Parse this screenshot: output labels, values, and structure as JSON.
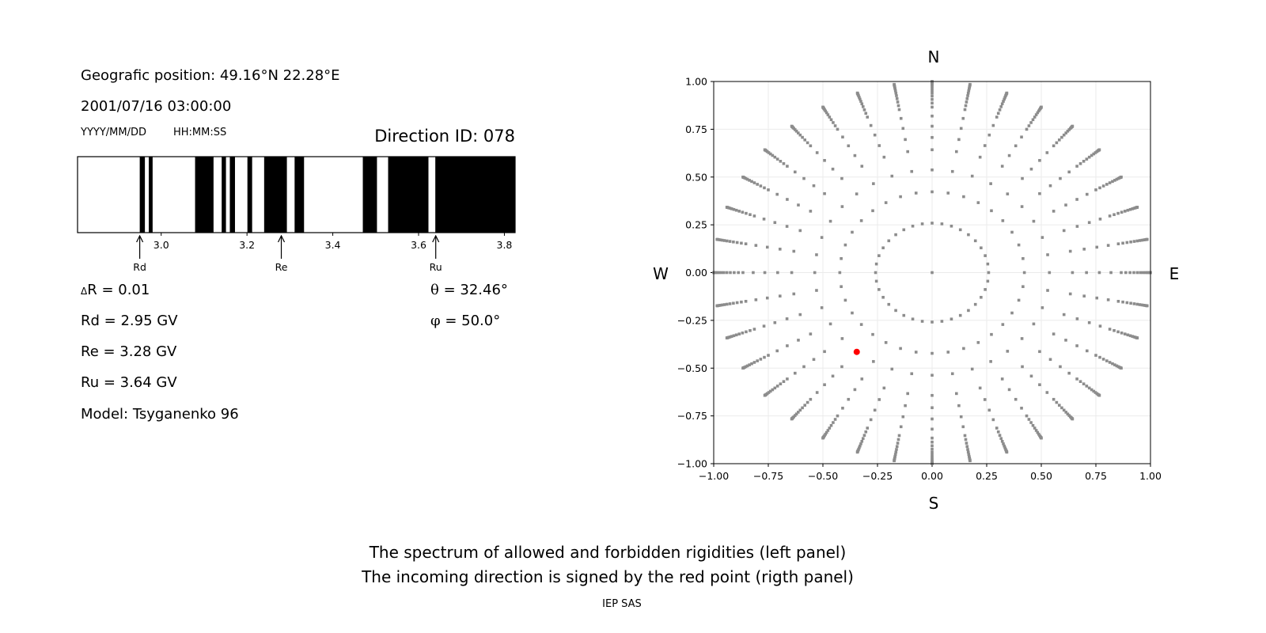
{
  "left_panel": {
    "position": "Geografic position: 49.16°N 22.28°E",
    "datetime": "2001/07/16 03:00:00",
    "date_format": "YYYY/MM/DD",
    "time_format": "HH:MM:SS",
    "direction_id": "Direction ID: 078",
    "delta_r_symbol": "Δ",
    "delta_r": "R = 0.01",
    "rd": "Rd = 2.95 GV",
    "re": "Re = 3.28 GV",
    "ru": "Ru = 3.64 GV",
    "model": "Model: Tsyganenko 96",
    "theta_symbol": "θ",
    "theta": "= 32.46°",
    "phi_symbol": "φ",
    "phi": "= 50.0°"
  },
  "chart_data": [
    {
      "type": "spectrum",
      "xlim": [
        2.805,
        3.825
      ],
      "ticks": [
        "3.0",
        "3.2",
        "3.4",
        "3.6",
        "3.8"
      ],
      "tick_values": [
        3.0,
        3.2,
        3.4,
        3.6,
        3.8
      ],
      "forbidden_color": "#000000",
      "allowed_color": "#ffffff",
      "forbidden_bands": [
        [
          2.95,
          2.962
        ],
        [
          2.971,
          2.98
        ],
        [
          3.079,
          3.122
        ],
        [
          3.141,
          3.151
        ],
        [
          3.16,
          3.172
        ],
        [
          3.201,
          3.212
        ],
        [
          3.24,
          3.293
        ],
        [
          3.311,
          3.333
        ],
        [
          3.47,
          3.503
        ],
        [
          3.529,
          3.623
        ],
        [
          3.639,
          3.825
        ]
      ],
      "markers": [
        {
          "label": "Rd",
          "value": 2.95
        },
        {
          "label": "Re",
          "value": 3.28
        },
        {
          "label": "Ru",
          "value": 3.64
        }
      ]
    },
    {
      "type": "scatter",
      "xlim": [
        -1,
        1
      ],
      "ylim": [
        -1,
        1
      ],
      "grid": true,
      "ticks": [
        "−1.00",
        "−0.75",
        "−0.50",
        "−0.25",
        "0.00",
        "0.25",
        "0.50",
        "0.75",
        "1.00"
      ],
      "tick_values": [
        -1,
        -0.75,
        -0.5,
        -0.25,
        0,
        0.25,
        0.5,
        0.75,
        1
      ],
      "compass": {
        "north": "N",
        "south": "S",
        "west": "W",
        "east": "E"
      },
      "grid_theta_deg": [
        0,
        15,
        25,
        32.5,
        40,
        45,
        50,
        55,
        60,
        62.5,
        65,
        67.5,
        70,
        72.5,
        75,
        77.5,
        80,
        82.5,
        85,
        87.5,
        90
      ],
      "grid_phi_step_deg": 10,
      "point_color": "#8c8c8c",
      "highlight": {
        "x": -0.345,
        "y": -0.415,
        "color": "#ff0000"
      }
    }
  ],
  "caption": {
    "line1": "The spectrum of allowed and forbidden rigidities (left panel)",
    "line2": "The incoming direction is signed by the red point (rigth panel)",
    "credit": "IEP SAS"
  }
}
